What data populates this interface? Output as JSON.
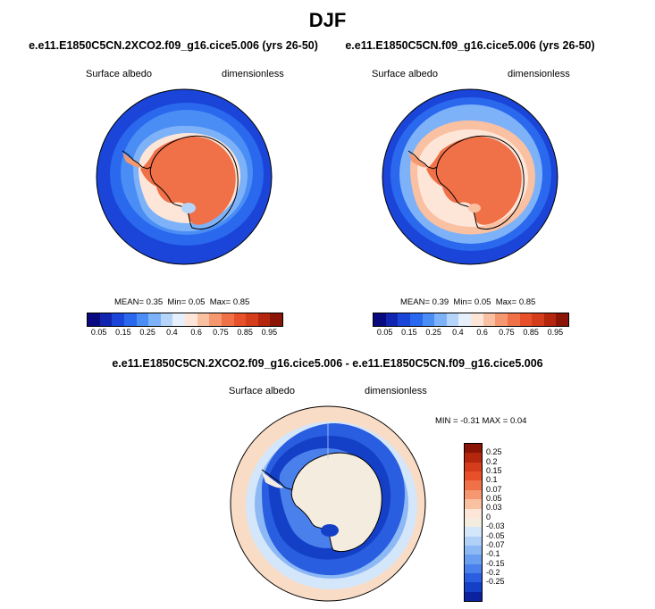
{
  "title": "DJF",
  "panels": [
    {
      "case": "e.e11.E1850C5CN.2XCO2.f09_g16.cice5.006 (yrs 26-50)",
      "variable": "Surface albedo",
      "units": "dimensionless",
      "stats": {
        "mean_label": "MEAN=",
        "mean": "0.35",
        "min_label": "Min=",
        "min": "0.05",
        "max_label": "Max=",
        "max": "0.85"
      }
    },
    {
      "case": "e.e11.E1850C5CN.f09_g16.cice5.006 (yrs 26-50)",
      "variable": "Surface albedo",
      "units": "dimensionless",
      "stats": {
        "mean_label": "MEAN=",
        "mean": "0.39",
        "min_label": "Min=",
        "min": "0.05",
        "max_label": "Max=",
        "max": "0.85"
      }
    }
  ],
  "diff": {
    "case": "e.e11.E1850C5CN.2XCO2.f09_g16.cice5.006 - e.e11.E1850C5CN.f09_g16.cice5.006",
    "variable": "Surface albedo",
    "units": "dimensionless",
    "minmax_text": "MIN =  -0.31 MAX =   0.04"
  },
  "abs_colorbar": {
    "colors": [
      "#0a0a80",
      "#1225b0",
      "#1a45d8",
      "#2a68ee",
      "#4a8ef5",
      "#7eb2f8",
      "#b4d4fa",
      "#e6f0fc",
      "#fde6d8",
      "#f9c0a2",
      "#f59870",
      "#f07048",
      "#e8502a",
      "#d43c1c",
      "#b4260e",
      "#8a1406"
    ],
    "labels": [
      "0.05",
      "0.15",
      "0.25",
      "0.4",
      "0.6",
      "0.75",
      "0.85",
      "0.95"
    ]
  },
  "diff_colorbar": {
    "colors": [
      "#8a1406",
      "#b4260e",
      "#d43c1c",
      "#e8502a",
      "#f07048",
      "#f59870",
      "#f9c0a2",
      "#fde6d8",
      "#f4ecdf",
      "#d4e6fa",
      "#b0d0f8",
      "#8cb8f4",
      "#6a9ef0",
      "#4a80ec",
      "#2a5ee0",
      "#1440c8",
      "#0a22a0"
    ],
    "labels": [
      "0.25",
      "0.2",
      "0.15",
      "0.1",
      "0.07",
      "0.05",
      "0.03",
      "0",
      "-0.03",
      "-0.05",
      "-0.07",
      "-0.1",
      "-0.15",
      "-0.2",
      "-0.25"
    ]
  }
}
